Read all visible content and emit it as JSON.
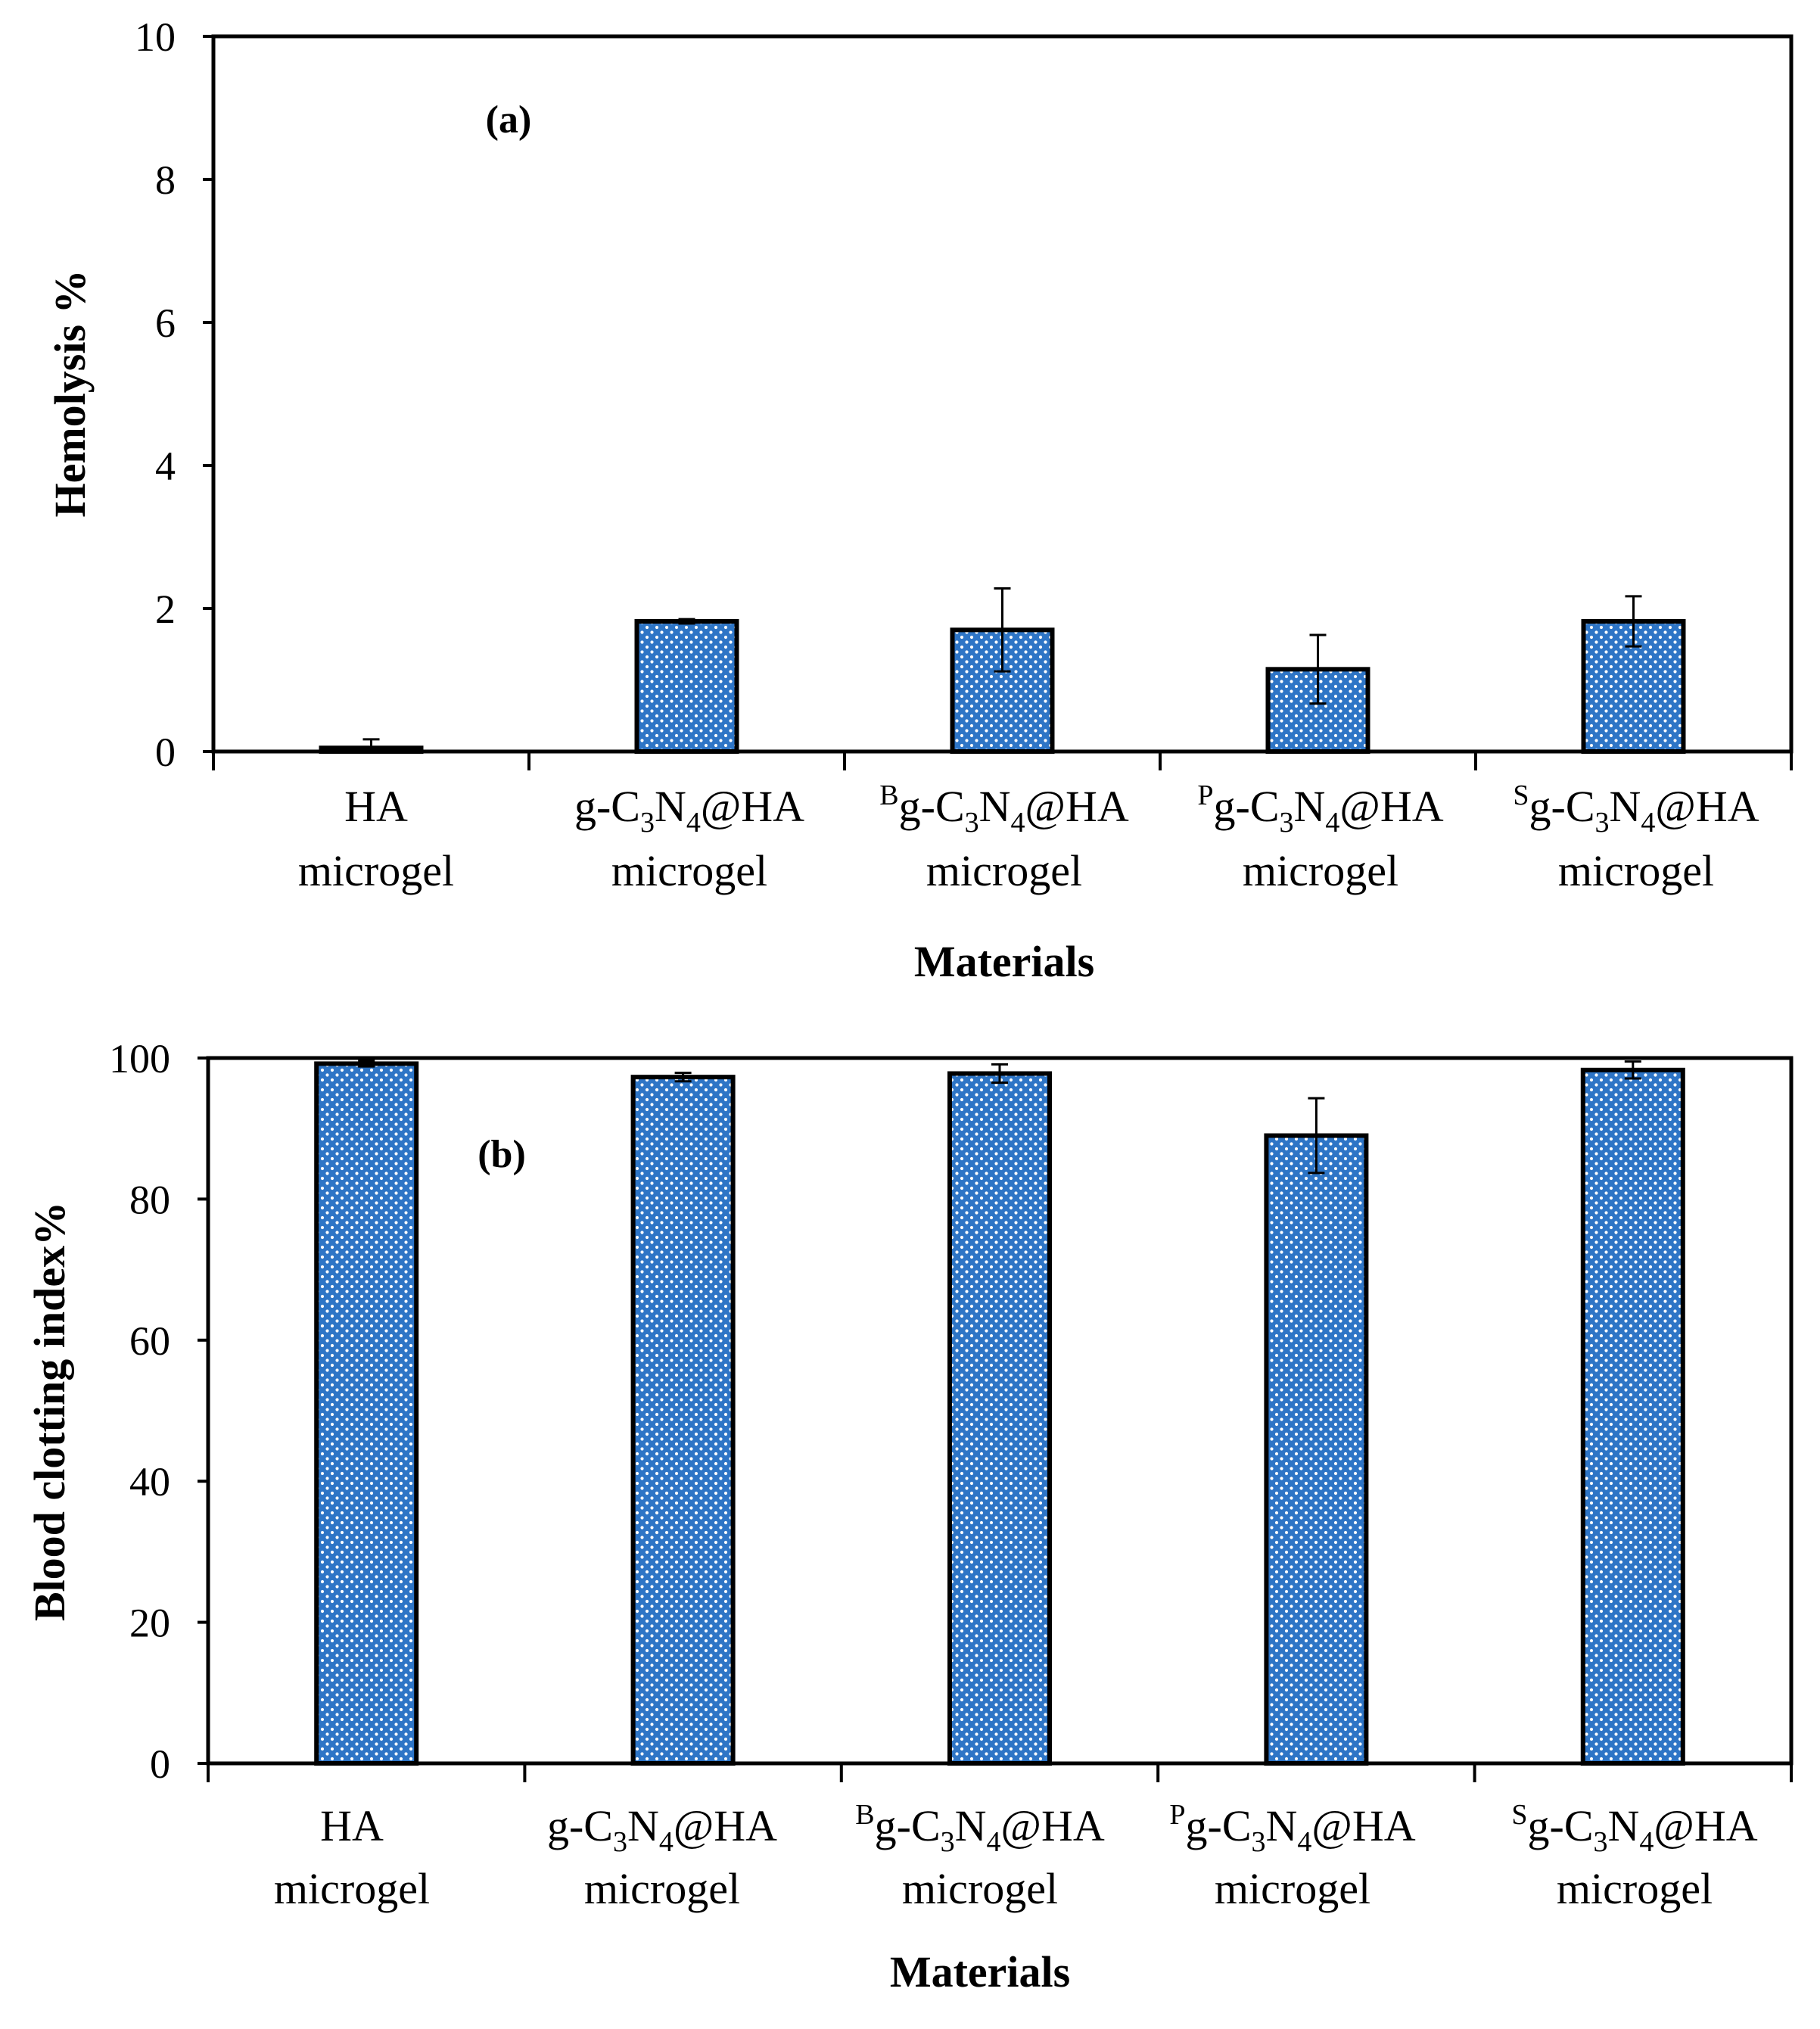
{
  "chart_data": [
    {
      "type": "bar",
      "title": "",
      "panel_label": "(a)",
      "xlabel": "Materials",
      "ylabel": "Hemolysis %",
      "ylim": [
        0,
        10
      ],
      "yticks": [
        "0",
        "2",
        "4",
        "6",
        "8",
        "10"
      ],
      "categories": [
        {
          "pre": "",
          "mid": "HA",
          "subs": [],
          "line2": "microgel"
        },
        {
          "pre": "",
          "mid": "g-C",
          "subs": [
            "3",
            "N",
            "4",
            "@HA"
          ],
          "line2": "microgel"
        },
        {
          "pre": "B",
          "mid": "g-C",
          "subs": [
            "3",
            "N",
            "4",
            "@HA"
          ],
          "line2": "microgel"
        },
        {
          "pre": "P",
          "mid": "g-C",
          "subs": [
            "3",
            "N",
            "4",
            "@HA"
          ],
          "line2": "microgel"
        },
        {
          "pre": "S",
          "mid": "g-C",
          "subs": [
            "3",
            "N",
            "4",
            "@HA"
          ],
          "line2": "microgel"
        }
      ],
      "values": [
        0.05,
        1.82,
        1.7,
        1.15,
        1.82
      ],
      "errors": [
        0.12,
        0.03,
        0.58,
        0.48,
        0.35
      ],
      "bar_color": "#2e75c6",
      "edge_color": "#000000"
    },
    {
      "type": "bar",
      "title": "",
      "panel_label": "(b)",
      "xlabel": "Materials",
      "ylabel": "Blood clotting index%",
      "ylim": [
        0,
        100
      ],
      "yticks": [
        "0",
        "20",
        "40",
        "60",
        "80",
        "100"
      ],
      "categories": [
        {
          "pre": "",
          "mid": "HA",
          "subs": [],
          "line2": "microgel"
        },
        {
          "pre": "",
          "mid": "g-C",
          "subs": [
            "3",
            "N",
            "4",
            "@HA"
          ],
          "line2": "microgel"
        },
        {
          "pre": "B",
          "mid": "g-C",
          "subs": [
            "3",
            "N",
            "4",
            "@HA"
          ],
          "line2": "microgel"
        },
        {
          "pre": "P",
          "mid": "g-C",
          "subs": [
            "3",
            "N",
            "4",
            "@HA"
          ],
          "line2": "microgel"
        },
        {
          "pre": "S",
          "mid": "g-C",
          "subs": [
            "3",
            "N",
            "4",
            "@HA"
          ],
          "line2": "microgel"
        }
      ],
      "values": [
        99.2,
        97.3,
        97.8,
        89.0,
        98.3
      ],
      "errors": [
        0.4,
        0.6,
        1.3,
        5.3,
        1.2
      ],
      "bar_color": "#2e75c6",
      "edge_color": "#000000"
    }
  ]
}
